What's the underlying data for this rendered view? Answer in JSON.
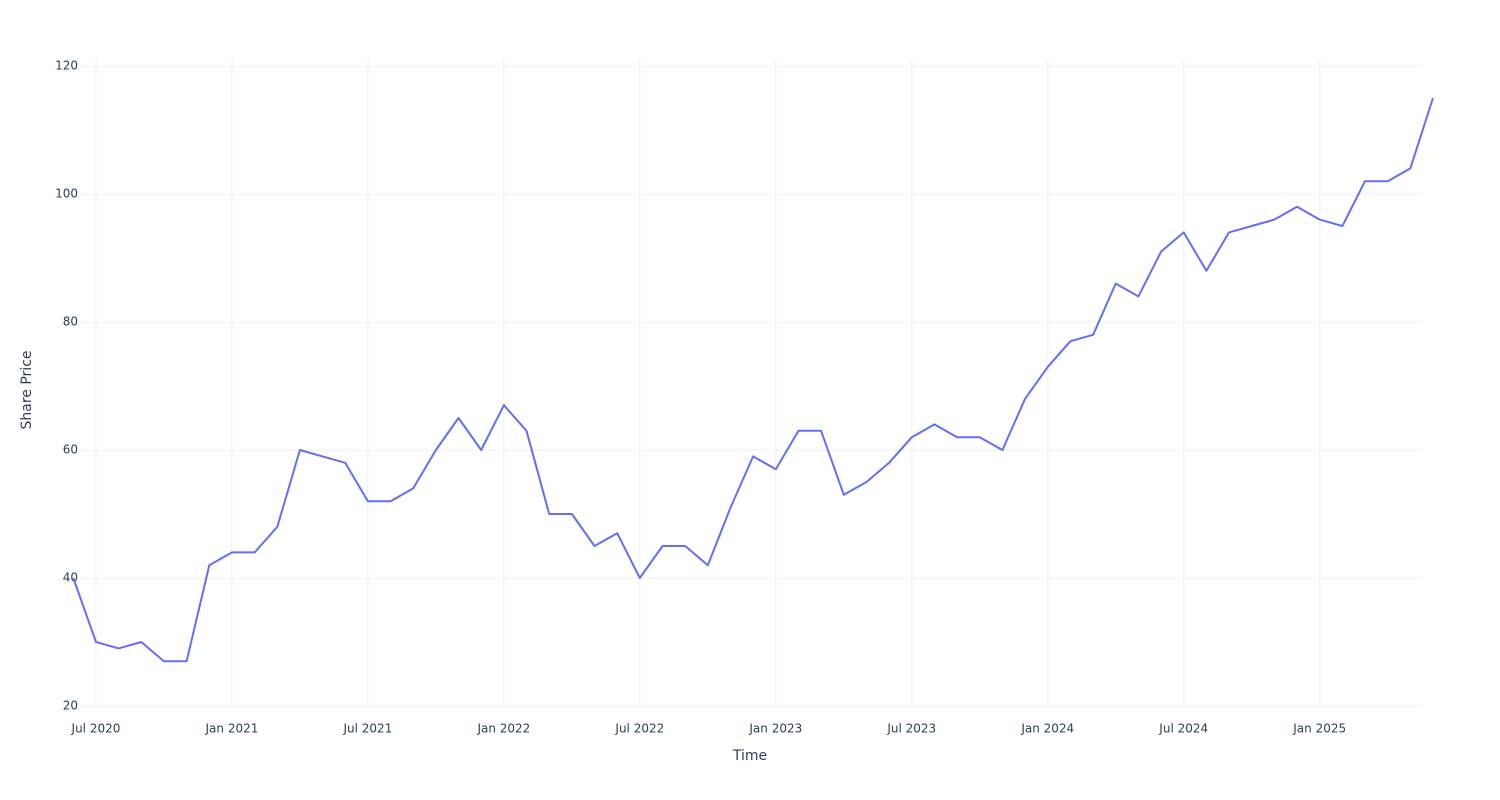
{
  "chart_data": {
    "type": "line",
    "x_label": "Time",
    "y_label": "Share Price",
    "x": [
      "2020-06",
      "2020-07",
      "2020-08",
      "2020-09",
      "2020-10",
      "2020-11",
      "2020-12",
      "2021-01",
      "2021-02",
      "2021-03",
      "2021-04",
      "2021-05",
      "2021-06",
      "2021-07",
      "2021-08",
      "2021-09",
      "2021-10",
      "2021-11",
      "2021-12",
      "2022-01",
      "2022-02",
      "2022-03",
      "2022-04",
      "2022-05",
      "2022-06",
      "2022-07",
      "2022-08",
      "2022-09",
      "2022-10",
      "2022-11",
      "2022-12",
      "2023-01",
      "2023-02",
      "2023-03",
      "2023-04",
      "2023-05",
      "2023-06",
      "2023-07",
      "2023-08",
      "2023-09",
      "2023-10",
      "2023-11",
      "2023-12",
      "2024-01",
      "2024-02",
      "2024-03",
      "2024-04",
      "2024-05",
      "2024-06",
      "2024-07",
      "2024-08",
      "2024-09",
      "2024-10",
      "2024-11",
      "2024-12",
      "2025-01",
      "2025-02",
      "2025-03",
      "2025-04",
      "2025-05",
      "2025-06"
    ],
    "series": [
      {
        "color": "#636efa",
        "values": [
          40,
          30,
          29,
          30,
          27,
          27,
          42,
          44,
          44,
          48,
          60,
          59,
          58,
          52,
          52,
          54,
          60,
          65,
          60,
          67,
          63,
          50,
          50,
          45,
          47,
          40,
          45,
          45,
          42,
          51,
          59,
          57,
          63,
          63,
          53,
          55,
          58,
          62,
          64,
          62,
          62,
          60,
          68,
          73,
          77,
          78,
          86,
          84,
          91,
          94,
          88,
          94,
          95,
          96,
          98,
          96,
          95,
          102,
          102,
          104,
          115
        ]
      }
    ],
    "xlim": [
      "2020-06",
      "2025-06"
    ],
    "xticks": [
      {
        "value": "2020-07",
        "label": "Jul 2020"
      },
      {
        "value": "2021-01",
        "label": "Jan 2021"
      },
      {
        "value": "2021-07",
        "label": "Jul 2021"
      },
      {
        "value": "2022-01",
        "label": "Jan 2022"
      },
      {
        "value": "2022-07",
        "label": "Jul 2022"
      },
      {
        "value": "2023-01",
        "label": "Jan 2023"
      },
      {
        "value": "2023-07",
        "label": "Jul 2023"
      },
      {
        "value": "2024-01",
        "label": "Jan 2024"
      },
      {
        "value": "2024-07",
        "label": "Jul 2024"
      },
      {
        "value": "2025-01",
        "label": "Jan 2025"
      }
    ],
    "ylim": [
      20,
      120
    ],
    "yticks": [
      20,
      40,
      60,
      80,
      100,
      120
    ],
    "grid": true
  }
}
